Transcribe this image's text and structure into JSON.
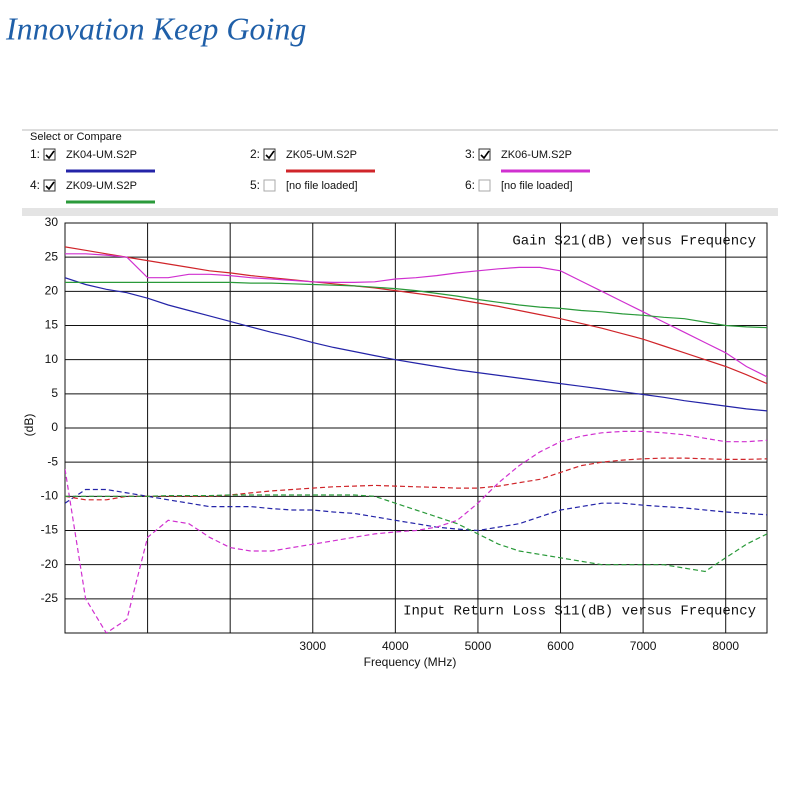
{
  "header": {
    "title": "Innovation Keep Going"
  },
  "select_panel": {
    "title": "Select or Compare",
    "slot_numbers": [
      "1:",
      "2:",
      "3:",
      "4:",
      "5:",
      "6:"
    ],
    "empty_slot_label": "[no file loaded]"
  },
  "chart_data": {
    "type": "line",
    "xlabel": "Frequency (MHz)",
    "ylabel": "(dB)",
    "annotations": [
      "Gain S21(dB) versus Frequency",
      "Input Return Loss S11(dB) versus Frequency"
    ],
    "xlim": [
      0,
      8500
    ],
    "ylim": [
      -30,
      30
    ],
    "xticks": [
      {
        "value": 1000,
        "label": null
      },
      {
        "value": 2000,
        "label": null
      },
      3000,
      4000,
      5000,
      6000,
      7000,
      8000
    ],
    "yticks": [
      30,
      25,
      20,
      15,
      10,
      5,
      0,
      -5,
      -10,
      -15,
      -20,
      -25
    ],
    "grid": true,
    "x": [
      0,
      250,
      500,
      750,
      1000,
      1250,
      1500,
      1750,
      2000,
      2250,
      2500,
      2750,
      3000,
      3250,
      3500,
      3750,
      4000,
      4250,
      4500,
      4750,
      5000,
      5250,
      5500,
      5750,
      6000,
      6250,
      6500,
      6750,
      7000,
      7250,
      7500,
      7750,
      8000,
      8250,
      8500
    ],
    "series": [
      {
        "name": "ZK04-UM.S2P",
        "color": "#2424a8",
        "values": [
          22,
          21,
          20.3,
          19.8,
          19,
          18,
          17.2,
          16.4,
          15.6,
          14.8,
          14,
          13.3,
          12.5,
          11.8,
          11.2,
          10.6,
          10,
          9.5,
          9,
          8.5,
          8.1,
          7.7,
          7.3,
          6.9,
          6.5,
          6.1,
          5.7,
          5.3,
          4.9,
          4.5,
          4,
          3.6,
          3.2,
          2.8,
          2.5
        ],
        "s11_values": [
          -11,
          -9,
          -9,
          -9.5,
          -10,
          -10.5,
          -11,
          -11.5,
          -11.5,
          -11.5,
          -11.8,
          -12,
          -12,
          -12.3,
          -12.5,
          -13,
          -13.5,
          -14,
          -14.5,
          -14.8,
          -15,
          -14.5,
          -14,
          -13,
          -12,
          -11.5,
          -11,
          -11,
          -11.3,
          -11.5,
          -11.7,
          -12,
          -12.3,
          -12.5,
          -12.7
        ]
      },
      {
        "name": "ZK05-UM.S2P",
        "color": "#d0252a",
        "values": [
          26.5,
          26,
          25.5,
          25,
          24.5,
          24,
          23.5,
          23,
          22.7,
          22.3,
          22,
          21.7,
          21.4,
          21.1,
          20.8,
          20.5,
          20.1,
          19.7,
          19.3,
          18.8,
          18.3,
          17.8,
          17.2,
          16.6,
          16,
          15.3,
          14.6,
          13.8,
          13,
          12,
          11,
          10,
          9,
          7.8,
          6.5
        ],
        "s11_values": [
          -10,
          -10.5,
          -10.5,
          -10,
          -10,
          -10,
          -10,
          -10,
          -9.8,
          -9.5,
          -9.2,
          -9,
          -8.8,
          -8.6,
          -8.5,
          -8.4,
          -8.5,
          -8.6,
          -8.7,
          -8.8,
          -8.8,
          -8.5,
          -8,
          -7.5,
          -6.5,
          -5.5,
          -5,
          -4.7,
          -4.5,
          -4.4,
          -4.4,
          -4.5,
          -4.6,
          -4.6,
          -4.5
        ]
      },
      {
        "name": "ZK06-UM.S2P",
        "color": "#d030d0",
        "values": [
          25.5,
          25.5,
          25.3,
          25,
          22,
          22,
          22.5,
          22.5,
          22.3,
          22,
          21.8,
          21.6,
          21.4,
          21.3,
          21.3,
          21.4,
          21.8,
          22,
          22.3,
          22.7,
          23,
          23.3,
          23.5,
          23.5,
          23,
          21.5,
          20,
          18.5,
          17,
          15.5,
          14,
          12.5,
          11,
          9,
          7.5
        ],
        "s11_values": [
          -6,
          -25,
          -30,
          -28,
          -16,
          -13.5,
          -14,
          -16,
          -17.5,
          -18,
          -18,
          -17.5,
          -17,
          -16.5,
          -16,
          -15.5,
          -15.2,
          -15,
          -14.5,
          -13.5,
          -11,
          -8,
          -5.5,
          -3.5,
          -2,
          -1.2,
          -0.7,
          -0.5,
          -0.5,
          -0.7,
          -1,
          -1.5,
          -2,
          -2,
          -1.8
        ]
      },
      {
        "name": "ZK09-UM.S2P",
        "color": "#2a9a3a",
        "values": [
          21.3,
          21.3,
          21.3,
          21.3,
          21.3,
          21.3,
          21.3,
          21.3,
          21.3,
          21.2,
          21.2,
          21.1,
          21,
          20.9,
          20.8,
          20.6,
          20.4,
          20.1,
          19.7,
          19.3,
          18.8,
          18.4,
          18,
          17.7,
          17.5,
          17.2,
          17,
          16.7,
          16.5,
          16.2,
          16,
          15.5,
          15,
          14.8,
          14.7
        ],
        "s11_values": [
          -10,
          -10,
          -10,
          -10,
          -10,
          -9.9,
          -9.9,
          -9.9,
          -9.8,
          -9.8,
          -9.8,
          -9.8,
          -9.8,
          -9.8,
          -9.8,
          -10,
          -11,
          -12,
          -13,
          -14,
          -15.5,
          -17,
          -18,
          -18.5,
          -19,
          -19.5,
          -20,
          -20,
          -20,
          -20,
          -20.5,
          -21,
          -19,
          -17,
          -15.5
        ]
      }
    ]
  }
}
